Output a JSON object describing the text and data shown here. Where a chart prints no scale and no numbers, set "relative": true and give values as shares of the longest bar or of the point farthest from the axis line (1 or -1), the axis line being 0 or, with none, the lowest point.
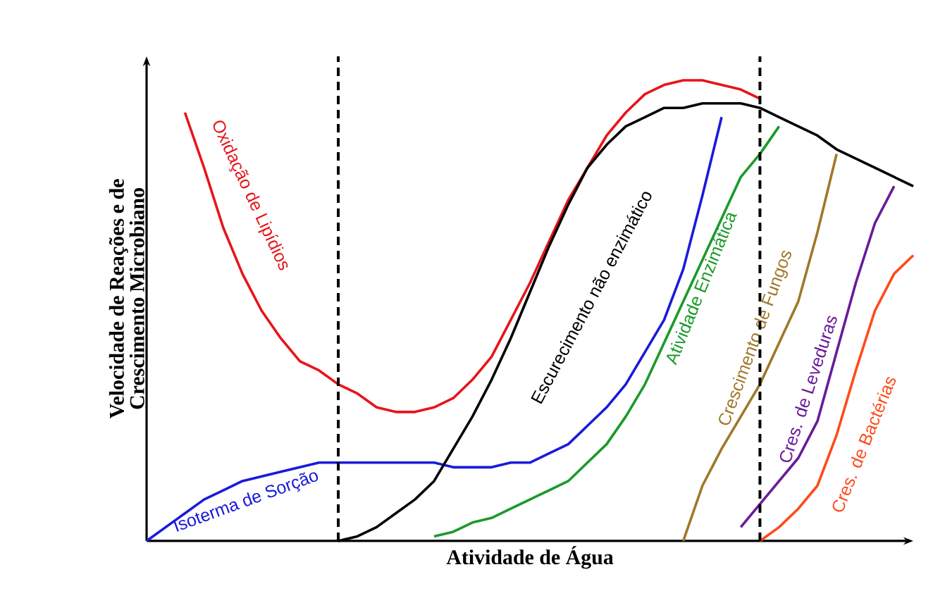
{
  "chart_data": {
    "type": "line",
    "relative": true,
    "xlabel": "Atividade de Água",
    "ylabel": "Velocidade de Reações e de Crescimento Microbiano",
    "legend": false,
    "line_style": "solid",
    "marker": "none",
    "categories": [
      null,
      null,
      null,
      null,
      null,
      null,
      null,
      null,
      null,
      null,
      null,
      null,
      null,
      null,
      null,
      null,
      null,
      null,
      null,
      null,
      null,
      null,
      null,
      null,
      null,
      null,
      null,
      null,
      null,
      null,
      null,
      null,
      null,
      null,
      null,
      null,
      null,
      null,
      null,
      null,
      null
    ],
    "series": [
      {
        "name": "Oxidação de Lipídios",
        "color": "#e8141b",
        "values": [
          null,
          null,
          0.93,
          0.81,
          0.68,
          0.58,
          0.5,
          0.44,
          0.39,
          0.37,
          0.34,
          0.32,
          0.29,
          0.28,
          0.28,
          0.29,
          0.31,
          0.35,
          0.4,
          0.48,
          0.56,
          0.65,
          0.74,
          0.81,
          0.88,
          0.93,
          0.97,
          0.99,
          1,
          1,
          0.99,
          0.98,
          0.96,
          null,
          null,
          null,
          null,
          null,
          null,
          null,
          null
        ]
      },
      {
        "name": "Isoterma de Sorção",
        "color": "#1a1adc",
        "values": [
          0,
          0.03,
          0.06,
          0.09,
          0.11,
          0.13,
          0.14,
          0.15,
          0.16,
          0.17,
          0.17,
          0.17,
          0.17,
          0.17,
          0.17,
          0.17,
          0.16,
          0.16,
          0.16,
          0.17,
          0.17,
          0.19,
          0.21,
          0.25,
          0.29,
          0.34,
          0.41,
          0.48,
          0.59,
          0.75,
          0.92,
          null,
          null,
          null,
          null,
          null,
          null,
          null,
          null,
          null,
          null
        ]
      },
      {
        "name": "Escurecimento não enzimático",
        "color": "#000000",
        "values": [
          null,
          null,
          null,
          null,
          null,
          null,
          null,
          null,
          null,
          null,
          0,
          0.01,
          0.03,
          0.06,
          0.09,
          0.13,
          0.2,
          0.27,
          0.35,
          0.44,
          0.54,
          0.64,
          0.73,
          0.81,
          0.86,
          0.9,
          0.92,
          0.94,
          0.94,
          0.95,
          0.95,
          0.95,
          0.94,
          0.92,
          0.9,
          0.88,
          0.85,
          0.83,
          0.81,
          0.79,
          0.77
        ]
      },
      {
        "name": "Atividade Enzimática",
        "color": "#1a9a2a",
        "values": [
          null,
          null,
          null,
          null,
          null,
          null,
          null,
          null,
          null,
          null,
          null,
          null,
          null,
          null,
          null,
          0.01,
          0.02,
          0.04,
          0.05,
          0.07,
          0.09,
          0.11,
          0.13,
          0.17,
          0.21,
          0.27,
          0.34,
          0.43,
          0.52,
          0.61,
          0.7,
          0.79,
          0.84,
          0.9,
          null,
          null,
          null,
          null,
          null,
          null,
          null
        ]
      },
      {
        "name": "Crescimento de Fungos",
        "color": "#a07828",
        "values": [
          null,
          null,
          null,
          null,
          null,
          null,
          null,
          null,
          null,
          null,
          null,
          null,
          null,
          null,
          null,
          null,
          null,
          null,
          null,
          null,
          null,
          null,
          null,
          null,
          null,
          null,
          null,
          null,
          0,
          0.12,
          0.2,
          0.27,
          0.34,
          0.43,
          0.52,
          0.67,
          0.84,
          null,
          null,
          null,
          null
        ]
      },
      {
        "name": "Cres. de Leveduras",
        "color": "#6a1a9a",
        "values": [
          null,
          null,
          null,
          null,
          null,
          null,
          null,
          null,
          null,
          null,
          null,
          null,
          null,
          null,
          null,
          null,
          null,
          null,
          null,
          null,
          null,
          null,
          null,
          null,
          null,
          null,
          null,
          null,
          null,
          null,
          null,
          0.03,
          0.08,
          0.13,
          0.18,
          0.26,
          0.41,
          0.56,
          0.69,
          0.77,
          null
        ]
      },
      {
        "name": "Cres. de Bactérias",
        "color": "#ff4a1a",
        "values": [
          null,
          null,
          null,
          null,
          null,
          null,
          null,
          null,
          null,
          null,
          null,
          null,
          null,
          null,
          null,
          null,
          null,
          null,
          null,
          null,
          null,
          null,
          null,
          null,
          null,
          null,
          null,
          null,
          null,
          null,
          null,
          null,
          0,
          0.03,
          0.07,
          0.12,
          0.23,
          0.37,
          0.5,
          0.58,
          0.62
        ]
      }
    ]
  }
}
